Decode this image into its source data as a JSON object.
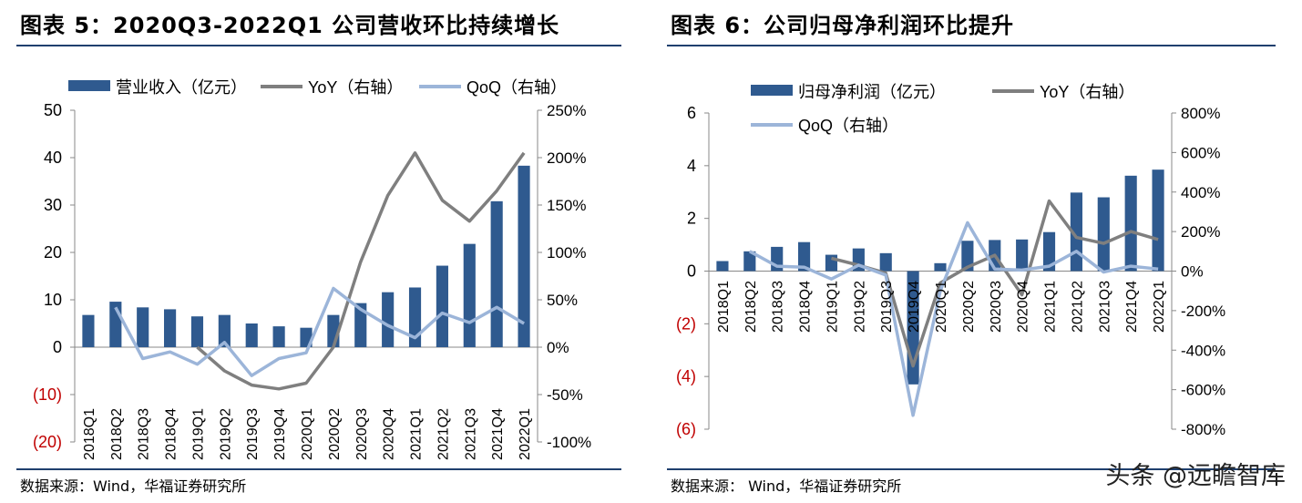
{
  "left": {
    "title": "图表 5：2020Q3-2022Q1 公司营收环比持续增长",
    "source": "数据来源：Wind，华福证券研究所",
    "chart_data": {
      "type": "bar",
      "categories": [
        "2018Q1",
        "2018Q2",
        "2018Q3",
        "2018Q4",
        "2019Q1",
        "2019Q2",
        "2019Q3",
        "2019Q4",
        "2020Q1",
        "2020Q2",
        "2020Q3",
        "2020Q4",
        "2021Q1",
        "2021Q2",
        "2021Q3",
        "2021Q4",
        "2022Q1"
      ],
      "series": [
        {
          "name": "营业收入（亿元）",
          "kind": "bar",
          "axis": "left",
          "color": "#2f5a8f",
          "values": [
            6.8,
            9.6,
            8.4,
            8.0,
            6.5,
            6.8,
            5.0,
            4.4,
            4.1,
            6.8,
            9.3,
            11.6,
            12.6,
            17.2,
            21.8,
            30.8,
            38.3
          ]
        },
        {
          "name": "YoY（右轴）",
          "kind": "line",
          "axis": "right",
          "color": "#7f7f7f",
          "values": [
            null,
            null,
            null,
            null,
            0,
            -25,
            -40,
            -44,
            -38,
            0,
            90,
            160,
            205,
            155,
            133,
            165,
            205
          ]
        },
        {
          "name": "QoQ（右轴）",
          "kind": "line",
          "axis": "right",
          "color": "#9cb5d9",
          "values": [
            null,
            42,
            -12,
            -5,
            -18,
            5,
            -30,
            -12,
            -6,
            62,
            40,
            23,
            10,
            36,
            26,
            42,
            25
          ]
        }
      ],
      "ylim_left": [
        -20,
        50
      ],
      "yticks_left": [
        "50",
        "40",
        "30",
        "20",
        "10",
        "0",
        "(10)",
        "(20)"
      ],
      "ylim_right": [
        -100,
        250
      ],
      "yticks_right": [
        "250%",
        "200%",
        "150%",
        "100%",
        "50%",
        "0%",
        "-50%",
        "-100%"
      ],
      "legend_position": "top"
    }
  },
  "right": {
    "title": "图表 6：公司归母净利润环比提升",
    "source": "数据来源：  Wind，华福证券研究所",
    "chart_data": {
      "type": "bar",
      "categories": [
        "2018Q1",
        "2018Q2",
        "2018Q3",
        "2018Q4",
        "2019Q1",
        "2019Q2",
        "2019Q3",
        "2019Q4",
        "2020Q1",
        "2020Q2",
        "2020Q3",
        "2020Q4",
        "2021Q1",
        "2021Q2",
        "2021Q3",
        "2021Q4",
        "2022Q1"
      ],
      "series": [
        {
          "name": "归母净利润（亿元）",
          "kind": "bar",
          "axis": "left",
          "color": "#2f5a8f",
          "values": [
            0.38,
            0.75,
            0.92,
            1.1,
            0.62,
            0.86,
            0.68,
            -4.3,
            0.3,
            1.15,
            1.18,
            1.2,
            1.48,
            2.98,
            2.8,
            3.62,
            3.85
          ]
        },
        {
          "name": "YoY（右轴）",
          "kind": "line",
          "axis": "right",
          "color": "#7f7f7f",
          "values": [
            null,
            null,
            null,
            null,
            65,
            30,
            -10,
            -480,
            -60,
            20,
            80,
            -120,
            355,
            170,
            140,
            200,
            160
          ]
        },
        {
          "name": "QoQ（右轴）",
          "kind": "line",
          "axis": "right",
          "color": "#9cb5d9",
          "values": [
            null,
            100,
            25,
            20,
            -40,
            30,
            -20,
            -730,
            -100,
            245,
            10,
            5,
            25,
            100,
            -5,
            25,
            10
          ]
        }
      ],
      "ylim_left": [
        -6,
        6
      ],
      "yticks_left": [
        "6",
        "4",
        "2",
        "0",
        "(2)",
        "(4)",
        "(6)"
      ],
      "ylim_right": [
        -800,
        800
      ],
      "yticks_right": [
        "800%",
        "600%",
        "400%",
        "200%",
        "0%",
        "-200%",
        "-400%",
        "-600%",
        "-800%"
      ],
      "legend_position": "top"
    }
  },
  "watermark": "头条 @远瞻智库",
  "colors": {
    "negative_tick": "#c00000",
    "rule": "#1f3f6e"
  }
}
